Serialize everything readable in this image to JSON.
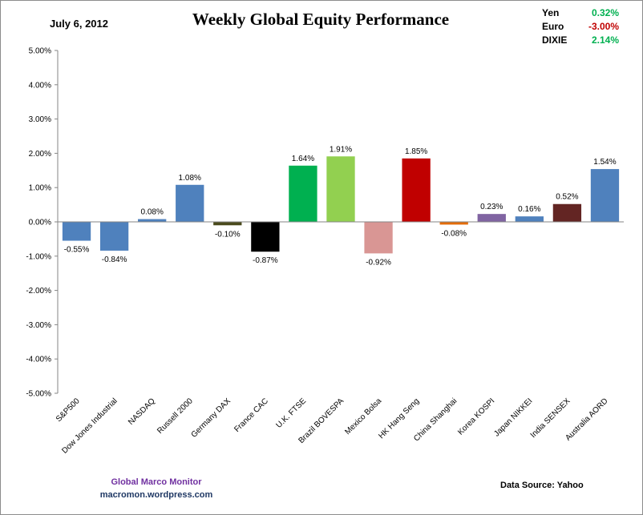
{
  "header": {
    "date": "July 6, 2012",
    "title": "Weekly Global Equity Performance"
  },
  "currencies": [
    {
      "name": "Yen",
      "value": "0.32%",
      "color": "#00b050"
    },
    {
      "name": "Euro",
      "value": "-3.00%",
      "color": "#c00000"
    },
    {
      "name": "DIXIE",
      "value": "2.14%",
      "color": "#00b050"
    }
  ],
  "footer": {
    "credit_line1": "Global  Marco  Monitor",
    "credit_line2": "macromon.wordpress.com",
    "source": "Data Source:    Yahoo"
  },
  "chart_data": {
    "type": "bar",
    "title": "Weekly Global Equity Performance",
    "xlabel": "",
    "ylabel": "",
    "ylim": [
      -5,
      5
    ],
    "ytick_step": 1,
    "ytick_labels": [
      "5.00%",
      "4.00%",
      "3.00%",
      "2.00%",
      "1.00%",
      "0.00%",
      "-1.00%",
      "-2.00%",
      "-3.00%",
      "-4.00%",
      "-5.00%"
    ],
    "categories": [
      "S&P500",
      "Dow Jones Industrial",
      "NASDAQ",
      "Russell 2000",
      "Germany DAX",
      "France CAC",
      "U.K. FTSE",
      "Brazil BOVESPA",
      "Mexico Bolsa",
      "HK Hang Seng",
      "China Shanghai",
      "Korea KOSPI",
      "Japan NIKKEI",
      "India SENSEX",
      "Australia AORD"
    ],
    "values": [
      -0.55,
      -0.84,
      0.08,
      1.08,
      -0.1,
      -0.87,
      1.64,
      1.91,
      -0.92,
      1.85,
      -0.08,
      0.23,
      0.16,
      0.52,
      1.54
    ],
    "labels": [
      "-0.55%",
      "-0.84%",
      "0.08%",
      "1.08%",
      "-0.10%",
      "-0.87%",
      "1.64%",
      "1.91%",
      "-0.92%",
      "1.85%",
      "-0.08%",
      "0.23%",
      "0.16%",
      "0.52%",
      "1.54%"
    ],
    "colors": [
      "#4f81bd",
      "#4f81bd",
      "#4f81bd",
      "#4f81bd",
      "#4a4a1c",
      "#000000",
      "#00b050",
      "#92d050",
      "#d99694",
      "#c00000",
      "#e36c09",
      "#8064a2",
      "#4f81bd",
      "#632523",
      "#4f81bd"
    ]
  }
}
